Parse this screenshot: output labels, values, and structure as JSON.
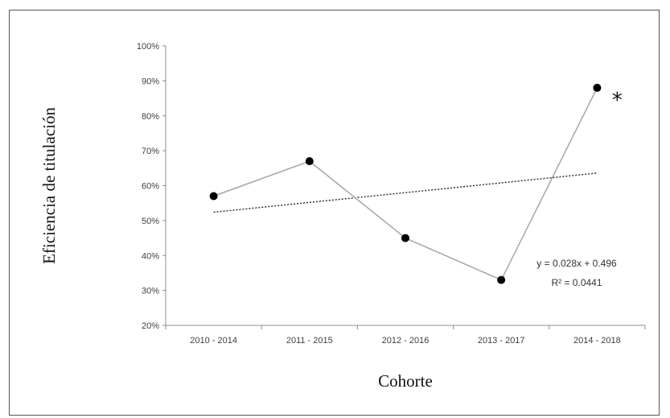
{
  "chart_data": {
    "type": "line",
    "categories": [
      "2010 - 2014",
      "2011 - 2015",
      "2012 - 2016",
      "2013 - 2017",
      "2014 - 2018"
    ],
    "series": [
      {
        "values": [
          0.57,
          0.67,
          0.45,
          0.33,
          0.88
        ]
      }
    ],
    "trendline": {
      "type": "linear",
      "equation": "y = 0.028x + 0.496",
      "r_squared": "R² = 0.0441",
      "slope": 0.028,
      "intercept": 0.496
    },
    "annotation": {
      "text": "*",
      "category": "2014 - 2018"
    },
    "xlabel": "Cohorte",
    "ylabel": "Eficiencia de titulación",
    "ylim": [
      0.2,
      1.0
    ],
    "yticks": [
      "20%",
      "30%",
      "40%",
      "50%",
      "60%",
      "70%",
      "80%",
      "90%",
      "100%"
    ],
    "grid": false,
    "legend": "none",
    "colors": {
      "line": "#a6a6a6",
      "marker": "#000000",
      "trend": "#333333",
      "axis": "#8c8c8c"
    }
  }
}
